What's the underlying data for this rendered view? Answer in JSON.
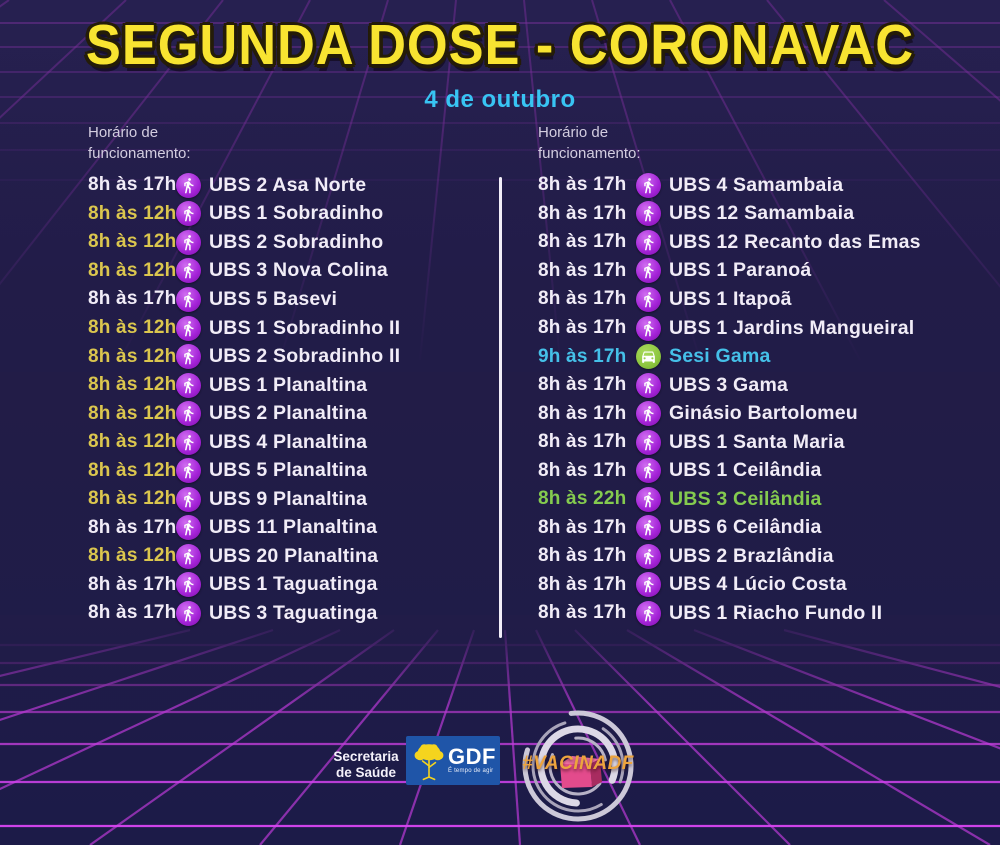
{
  "title": "SEGUNDA DOSE - CORONAVAC",
  "date": "4 de outubro",
  "icons": {
    "walk": "walking-person-icon",
    "car": "drive-thru-car-icon"
  },
  "columns": [
    {
      "header_line1": "Horário de",
      "header_line2": "funcionamento:",
      "entries": [
        {
          "time": "8h às 17h",
          "time_color": "white",
          "icon": "walk",
          "name": "UBS 2 Asa Norte",
          "name_color": "white"
        },
        {
          "time": "8h às 12h",
          "time_color": "yellow",
          "icon": "walk",
          "name": "UBS 1 Sobradinho",
          "name_color": "white"
        },
        {
          "time": "8h às 12h",
          "time_color": "yellow",
          "icon": "walk",
          "name": "UBS 2 Sobradinho",
          "name_color": "white"
        },
        {
          "time": "8h às 12h",
          "time_color": "yellow",
          "icon": "walk",
          "name": "UBS 3 Nova Colina",
          "name_color": "white"
        },
        {
          "time": "8h às 17h",
          "time_color": "white",
          "icon": "walk",
          "name": "UBS 5 Basevi",
          "name_color": "white"
        },
        {
          "time": "8h às 12h",
          "time_color": "yellow",
          "icon": "walk",
          "name": "UBS 1 Sobradinho II",
          "name_color": "white"
        },
        {
          "time": "8h às 12h",
          "time_color": "yellow",
          "icon": "walk",
          "name": "UBS 2 Sobradinho II",
          "name_color": "white"
        },
        {
          "time": "8h às 12h",
          "time_color": "yellow",
          "icon": "walk",
          "name": "UBS 1 Planaltina",
          "name_color": "white"
        },
        {
          "time": "8h às 12h",
          "time_color": "yellow",
          "icon": "walk",
          "name": "UBS 2 Planaltina",
          "name_color": "white"
        },
        {
          "time": "8h às 12h",
          "time_color": "yellow",
          "icon": "walk",
          "name": "UBS 4 Planaltina",
          "name_color": "white"
        },
        {
          "time": "8h às 12h",
          "time_color": "yellow",
          "icon": "walk",
          "name": "UBS 5 Planaltina",
          "name_color": "white"
        },
        {
          "time": "8h às 12h",
          "time_color": "yellow",
          "icon": "walk",
          "name": "UBS 9 Planaltina",
          "name_color": "white"
        },
        {
          "time": "8h às 17h",
          "time_color": "white",
          "icon": "walk",
          "name": "UBS 11 Planaltina",
          "name_color": "white"
        },
        {
          "time": "8h às 12h",
          "time_color": "yellow",
          "icon": "walk",
          "name": "UBS 20 Planaltina",
          "name_color": "white"
        },
        {
          "time": "8h às 17h",
          "time_color": "white",
          "icon": "walk",
          "name": "UBS 1 Taguatinga",
          "name_color": "white"
        },
        {
          "time": "8h às 17h",
          "time_color": "white",
          "icon": "walk",
          "name": "UBS 3 Taguatinga",
          "name_color": "white"
        }
      ]
    },
    {
      "header_line1": "Horário de",
      "header_line2": "funcionamento:",
      "entries": [
        {
          "time": "8h às 17h",
          "time_color": "white",
          "icon": "walk",
          "name": "UBS 4 Samambaia",
          "name_color": "white"
        },
        {
          "time": "8h às 17h",
          "time_color": "white",
          "icon": "walk",
          "name": "UBS 12 Samambaia",
          "name_color": "white"
        },
        {
          "time": "8h às 17h",
          "time_color": "white",
          "icon": "walk",
          "name": "UBS 12 Recanto das Emas",
          "name_color": "white"
        },
        {
          "time": "8h às 17h",
          "time_color": "white",
          "icon": "walk",
          "name": "UBS 1 Paranoá",
          "name_color": "white"
        },
        {
          "time": "8h às 17h",
          "time_color": "white",
          "icon": "walk",
          "name": "UBS 1 Itapoã",
          "name_color": "white"
        },
        {
          "time": "8h às 17h",
          "time_color": "white",
          "icon": "walk",
          "name": "UBS 1 Jardins Mangueiral",
          "name_color": "white"
        },
        {
          "time": "9h às 17h",
          "time_color": "cyan",
          "icon": "car",
          "name": "Sesi Gama",
          "name_color": "cyan"
        },
        {
          "time": "8h às 17h",
          "time_color": "white",
          "icon": "walk",
          "name": "UBS 3 Gama",
          "name_color": "white"
        },
        {
          "time": "8h às 17h",
          "time_color": "white",
          "icon": "walk",
          "name": "Ginásio Bartolomeu",
          "name_color": "white"
        },
        {
          "time": "8h às 17h",
          "time_color": "white",
          "icon": "walk",
          "name": "UBS 1 Santa Maria",
          "name_color": "white"
        },
        {
          "time": "8h às 17h",
          "time_color": "white",
          "icon": "walk",
          "name": "UBS 1 Ceilândia",
          "name_color": "white"
        },
        {
          "time": "8h às 22h",
          "time_color": "green",
          "icon": "walk",
          "name": "UBS 3 Ceilândia",
          "name_color": "green"
        },
        {
          "time": "8h às 17h",
          "time_color": "white",
          "icon": "walk",
          "name": "UBS 6 Ceilândia",
          "name_color": "white"
        },
        {
          "time": "8h às 17h",
          "time_color": "white",
          "icon": "walk",
          "name": "UBS 2 Brazlândia",
          "name_color": "white"
        },
        {
          "time": "8h às 17h",
          "time_color": "white",
          "icon": "walk",
          "name": "UBS 4 Lúcio Costa",
          "name_color": "white"
        },
        {
          "time": "8h às 17h",
          "time_color": "white",
          "icon": "walk",
          "name": "UBS 1 Riacho Fundo II",
          "name_color": "white"
        }
      ]
    }
  ],
  "footer": {
    "secretaria_line1": "Secretaria",
    "secretaria_line2": "de Saúde",
    "gdf_label": "GDF",
    "gdf_tagline": "É tempo de agir",
    "hashtag": "#VACINADF"
  },
  "palette": {
    "background": "#221c47",
    "grid_purple": "#8a34aa",
    "grid_pink": "#c93fe2",
    "title_yellow": "#f8e431",
    "title_outline": "#241c08",
    "date_cyan": "#38c4f3",
    "text_white": "#f1ecf7",
    "time_yellow": "#dbc64e",
    "time_cyan": "#45c0e8",
    "time_green": "#84cb4f",
    "walk_icon_purple": "#a524d8",
    "car_icon_green": "#8dc63f",
    "gdf_blue": "#1f55a8",
    "hashtag_orange": "#eda43e",
    "cube_pink": "#e34b8c"
  }
}
